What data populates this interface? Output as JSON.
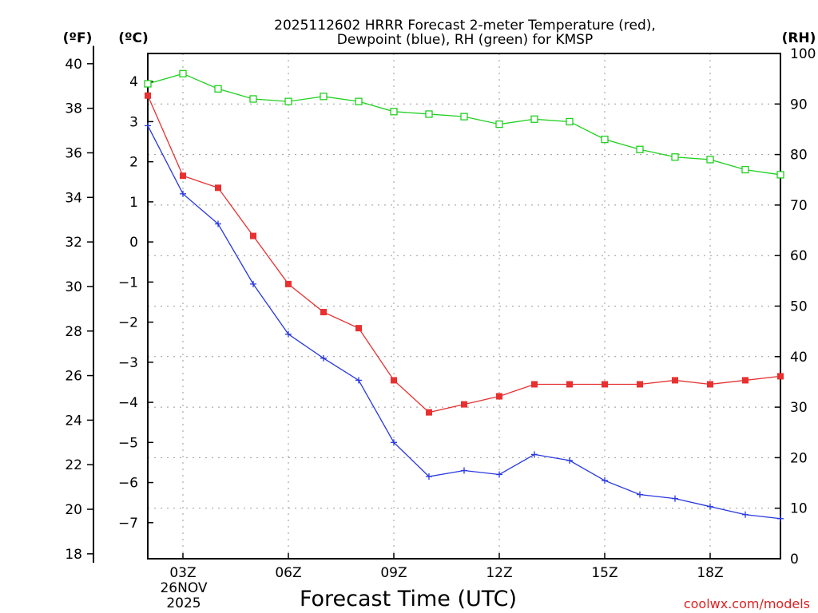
{
  "chart_data": {
    "type": "line",
    "title_line1": "2025112602 HRRR Forecast 2-meter Temperature (red),",
    "title_line2": "Dewpoint (blue), RH (green) for KMSP",
    "units": {
      "f": "(ºF)",
      "c": "(ºC)",
      "rh": "(RH)"
    },
    "xlabel": "Forecast Time (UTC)",
    "credit": "coolwx.com/models",
    "date_label": [
      "26NOV",
      "2025"
    ],
    "x_hours": [
      2,
      3,
      4,
      5,
      6,
      7,
      8,
      9,
      10,
      11,
      12,
      13,
      14,
      15,
      16,
      17,
      18,
      19,
      20
    ],
    "xlim": [
      2,
      20
    ],
    "x_ticks": [
      {
        "hour": 3,
        "label": "03Z"
      },
      {
        "hour": 6,
        "label": "06Z"
      },
      {
        "hour": 9,
        "label": "09Z"
      },
      {
        "hour": 12,
        "label": "12Z"
      },
      {
        "hour": 15,
        "label": "15Z"
      },
      {
        "hour": 18,
        "label": "18Z"
      }
    ],
    "c_lim": [
      -7.9,
      4.7
    ],
    "c_ticks": [
      "4",
      "3",
      "2",
      "1",
      "0",
      "−1",
      "−2",
      "−3",
      "−4",
      "−5",
      "−6",
      "−7"
    ],
    "c_tick_values": [
      4,
      3,
      2,
      1,
      0,
      -1,
      -2,
      -3,
      -4,
      -5,
      -6,
      -7
    ],
    "f_ticks": [
      "40",
      "38",
      "36",
      "34",
      "32",
      "30",
      "28",
      "26",
      "24",
      "22",
      "20",
      "18"
    ],
    "f_tick_values": [
      40,
      38,
      36,
      34,
      32,
      30,
      28,
      26,
      24,
      22,
      20,
      18
    ],
    "rh_lim": [
      0,
      100
    ],
    "rh_ticks": [
      "0",
      "10",
      "20",
      "30",
      "40",
      "50",
      "60",
      "70",
      "80",
      "90",
      "100"
    ],
    "rh_tick_values": [
      0,
      10,
      20,
      30,
      40,
      50,
      60,
      70,
      80,
      90,
      100
    ],
    "series": [
      {
        "name": "Temperature",
        "unit": "C",
        "color": "#e83030",
        "marker": "filled-square",
        "values": [
          3.65,
          1.65,
          1.35,
          0.15,
          -1.05,
          -1.75,
          -2.15,
          -3.45,
          -4.25,
          -4.05,
          -3.85,
          -3.55,
          -3.55,
          -3.55,
          -3.55,
          -3.45,
          -3.55,
          -3.45,
          -3.35
        ]
      },
      {
        "name": "Dewpoint",
        "unit": "C",
        "color": "#2838e0",
        "marker": "plus",
        "values": [
          2.9,
          1.2,
          0.45,
          -1.05,
          -2.3,
          -2.9,
          -3.45,
          -5.0,
          -5.85,
          -5.7,
          -5.8,
          -5.3,
          -5.45,
          -5.95,
          -6.3,
          -6.4,
          -6.6,
          -6.8,
          -6.9
        ]
      },
      {
        "name": "RH",
        "unit": "%",
        "color": "#20d020",
        "marker": "open-square",
        "values": [
          94,
          96,
          93,
          91,
          90.5,
          91.5,
          90.5,
          88.5,
          88,
          87.5,
          86,
          87,
          86.5,
          83,
          81,
          79.5,
          79,
          77,
          76
        ]
      }
    ]
  }
}
